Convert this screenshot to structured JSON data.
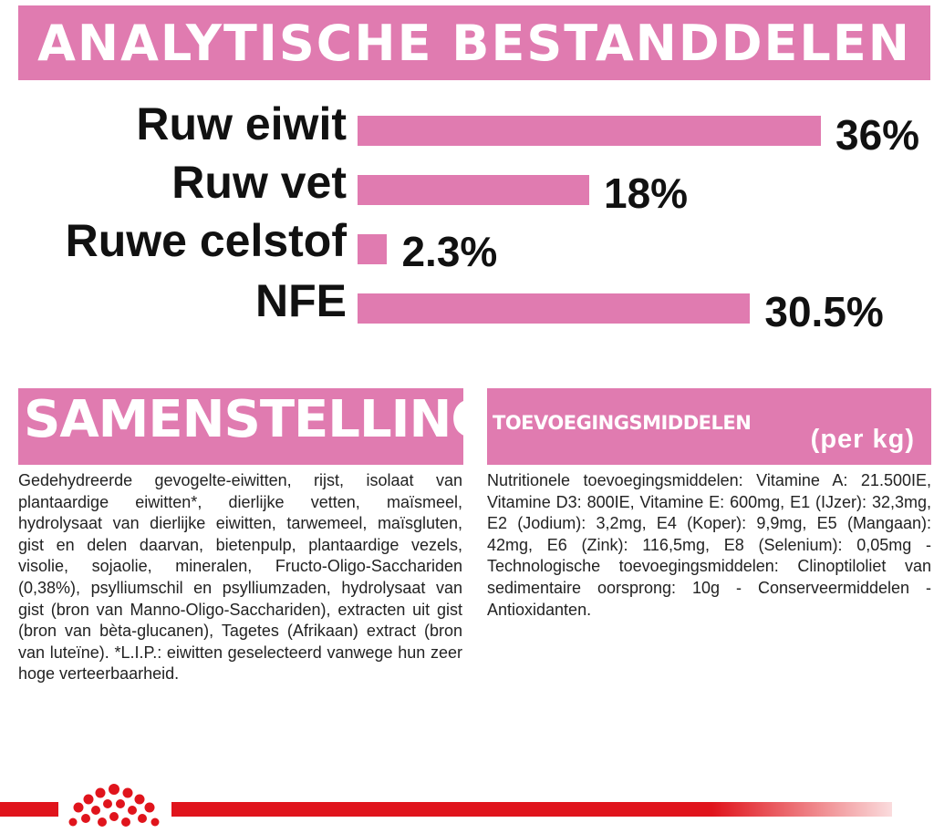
{
  "analysis": {
    "title": "ANALYTISCHE BESTANDDELEN",
    "items": [
      {
        "label": "Ruw eiwit",
        "value_text": "36%",
        "value": 36
      },
      {
        "label": "Ruw vet",
        "value_text": "18%",
        "value": 18
      },
      {
        "label": "Ruwe celstof",
        "value_text": "2.3%",
        "value": 2.3
      },
      {
        "label": "NFE",
        "value_text": "30.5%",
        "value": 30.5
      }
    ]
  },
  "composition": {
    "title": "SAMENSTELLING",
    "text": "Gedehydreerde gevogelte-eiwitten, rijst, isolaat van plantaardige eiwitten*, dierlijke vetten, maïsmeel, hydrolysaat van dierlijke eiwitten, tarwemeel, maïsgluten, gist en delen daarvan, bietenpulp, plantaardige vezels, visolie, sojaolie, mineralen, Fructo-Oligo-Sacchariden (0,38%), psylliumschil en psylliumzaden, hydrolysaat van gist (bron van Manno-Oligo-Sacchariden), extracten uit gist (bron van bèta-glucanen), Tagetes (Afrikaan) extract (bron van luteïne). *L.I.P.: eiwitten geselecteerd vanwege hun zeer hoge verteerbaarheid."
  },
  "additives": {
    "title": "TOEVOEGINGSMIDDELEN",
    "subtitle": "(per kg)",
    "text": "Nutritionele toevoegingsmiddelen: Vitamine A: 21.500IE, Vitamine D3: 800IE, Vitamine E: 600mg, E1 (IJzer): 32,3mg, E2 (Jodium): 3,2mg, E4 (Koper): 9,9mg, E5 (Mangaan): 42mg, E6 (Zink): 116,5mg, E8 (Selenium): 0,05mg - Technologische toevoegingsmiddelen: Clinoptiloliet van sedimentaire oorsprong: 10g - Conserveermiddelen - Antioxidanten."
  },
  "colors": {
    "accent": "#e07bb0",
    "brand_red": "#e0141c"
  },
  "icons": {
    "logo": "royal-canin-crown-icon"
  }
}
